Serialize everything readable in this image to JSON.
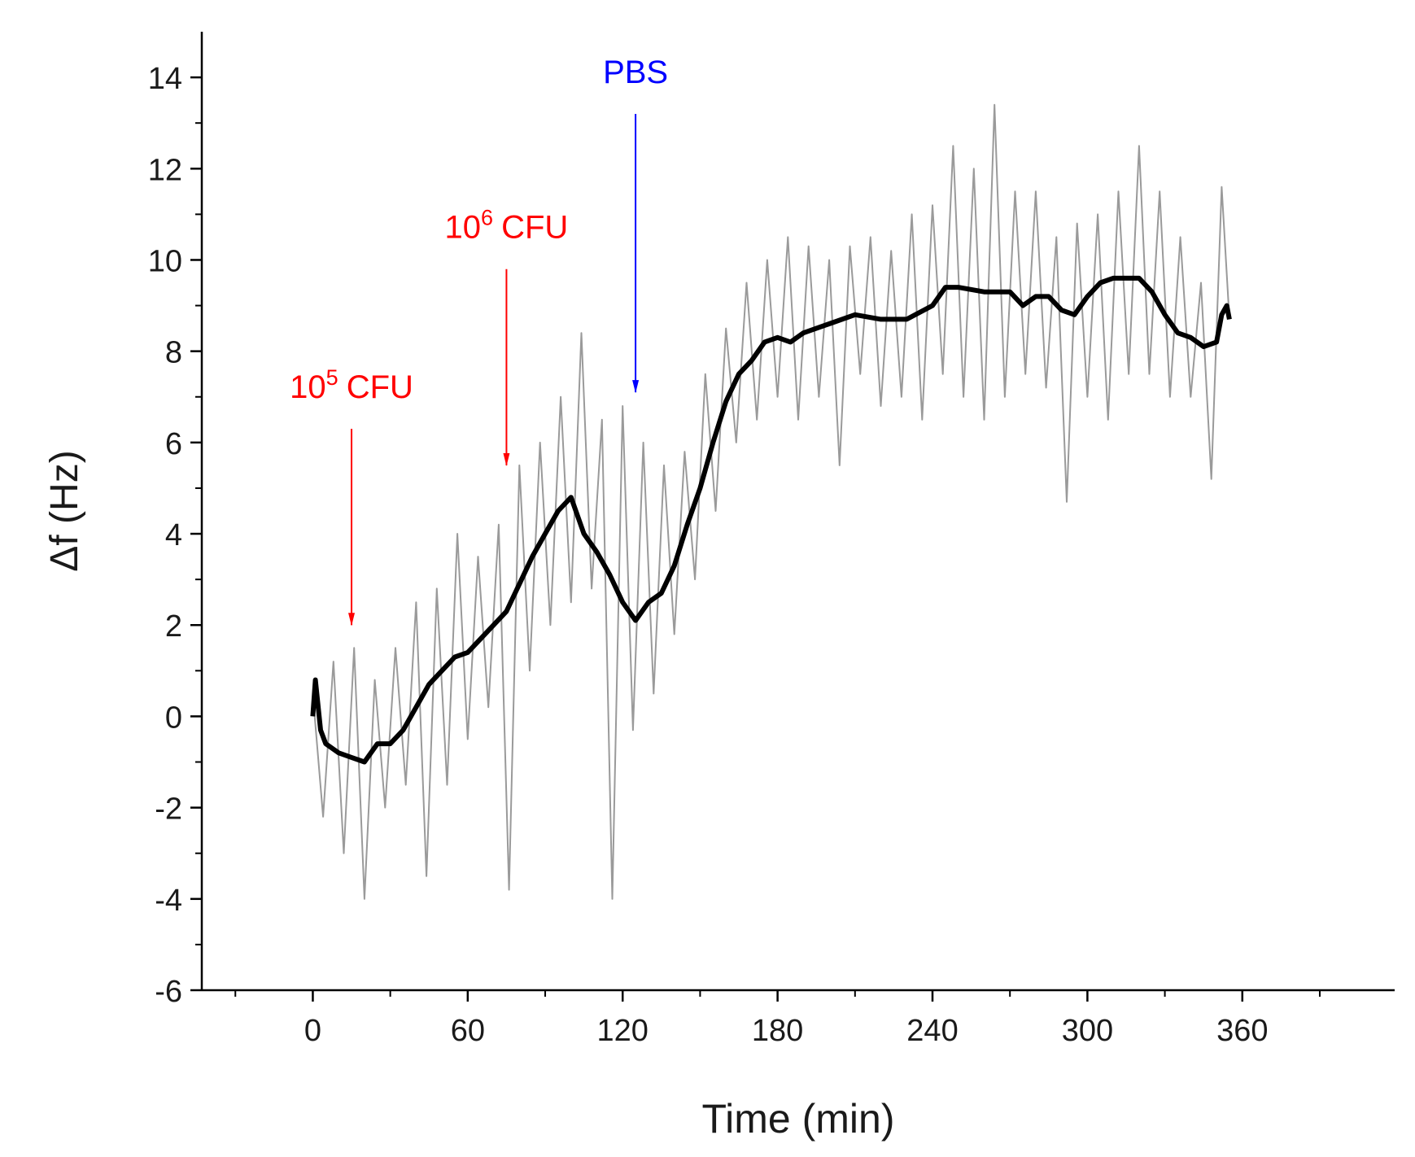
{
  "chart_data": {
    "type": "line",
    "xlabel": "Time (min)",
    "ylabel": "Δf (Hz)",
    "xlim": [
      -43,
      419
    ],
    "xticks": [
      0,
      60,
      120,
      180,
      240,
      300,
      360
    ],
    "ylim": [
      -6,
      15
    ],
    "yticks": [
      -6,
      -4,
      -2,
      0,
      2,
      4,
      6,
      8,
      10,
      12,
      14
    ],
    "series": [
      {
        "color": "#9a9a9a",
        "x": [
          0,
          4,
          8,
          12,
          16,
          20,
          24,
          28,
          32,
          36,
          40,
          44,
          48,
          52,
          56,
          60,
          64,
          68,
          72,
          76,
          80,
          84,
          88,
          92,
          96,
          100,
          104,
          108,
          112,
          116,
          120,
          124,
          128,
          132,
          136,
          140,
          144,
          148,
          152,
          156,
          160,
          164,
          168,
          172,
          176,
          180,
          184,
          188,
          192,
          196,
          200,
          204,
          208,
          212,
          216,
          220,
          224,
          228,
          232,
          236,
          240,
          244,
          248,
          252,
          256,
          260,
          264,
          268,
          272,
          276,
          280,
          284,
          288,
          292,
          296,
          300,
          304,
          308,
          312,
          316,
          320,
          324,
          328,
          332,
          336,
          340,
          344,
          348,
          352,
          355
        ],
        "values": [
          0.5,
          -2.2,
          1.2,
          -3,
          1.5,
          -4,
          0.8,
          -2,
          1.5,
          -1.5,
          2.5,
          -3.5,
          2.8,
          -1.5,
          4.0,
          -0.5,
          3.5,
          0.2,
          4.2,
          -3.8,
          5.5,
          1,
          6,
          2,
          7,
          2.5,
          8.4,
          2.8,
          6.5,
          -4,
          6.8,
          -0.3,
          6,
          0.5,
          5.5,
          1.8,
          5.8,
          3,
          7.5,
          4.5,
          8.5,
          6,
          9.5,
          6.5,
          10,
          7.0,
          10.5,
          6.5,
          10.3,
          7,
          10,
          5.5,
          10.3,
          7.5,
          10.5,
          6.8,
          10.2,
          7,
          11,
          6.5,
          11.2,
          7.5,
          12.5,
          7,
          12,
          6.5,
          13.4,
          7,
          11.5,
          7.5,
          11.5,
          7.2,
          10.5,
          4.7,
          10.8,
          7,
          11,
          6.5,
          11.5,
          7.5,
          12.5,
          7.5,
          11.5,
          7,
          10.5,
          7,
          9.5,
          5.2,
          11.6,
          8.7
        ]
      },
      {
        "color": "#000000",
        "x": [
          0,
          1,
          3,
          5,
          10,
          15,
          20,
          25,
          30,
          35,
          40,
          45,
          50,
          55,
          60,
          65,
          70,
          75,
          80,
          85,
          90,
          95,
          100,
          105,
          110,
          115,
          120,
          125,
          130,
          135,
          140,
          145,
          150,
          155,
          160,
          165,
          170,
          175,
          180,
          185,
          190,
          200,
          210,
          220,
          230,
          240,
          245,
          250,
          260,
          270,
          275,
          280,
          285,
          290,
          295,
          300,
          305,
          310,
          320,
          325,
          330,
          335,
          340,
          345,
          350,
          352,
          354,
          355
        ],
        "values": [
          0,
          0.8,
          -0.3,
          -0.6,
          -0.8,
          -0.9,
          -1.0,
          -0.6,
          -0.6,
          -0.3,
          0.2,
          0.7,
          1.0,
          1.3,
          1.4,
          1.7,
          2.0,
          2.3,
          2.9,
          3.5,
          4.0,
          4.5,
          4.8,
          4.0,
          3.6,
          3.1,
          2.5,
          2.1,
          2.5,
          2.7,
          3.3,
          4.2,
          5.0,
          6.0,
          6.9,
          7.5,
          7.8,
          8.2,
          8.3,
          8.2,
          8.4,
          8.6,
          8.8,
          8.7,
          8.7,
          9.0,
          9.4,
          9.4,
          9.3,
          9.3,
          9.0,
          9.2,
          9.2,
          8.9,
          8.8,
          9.2,
          9.5,
          9.6,
          9.6,
          9.3,
          8.8,
          8.4,
          8.3,
          8.1,
          8.2,
          8.8,
          9.0,
          8.7
        ]
      }
    ],
    "annotations": [
      {
        "base": "10",
        "sup": "5",
        "tail": "CFU",
        "color": "#ff0000",
        "x": 15,
        "y_from": 6.3,
        "y_to": 2.0
      },
      {
        "base": "10",
        "sup": "6",
        "tail": "CFU",
        "color": "#ff0000",
        "x": 75,
        "y_from": 9.8,
        "y_to": 5.5
      },
      {
        "base": "PBS",
        "color": "#0000ff",
        "x": 125,
        "y_from": 13.2,
        "y_to": 7.1
      }
    ]
  }
}
